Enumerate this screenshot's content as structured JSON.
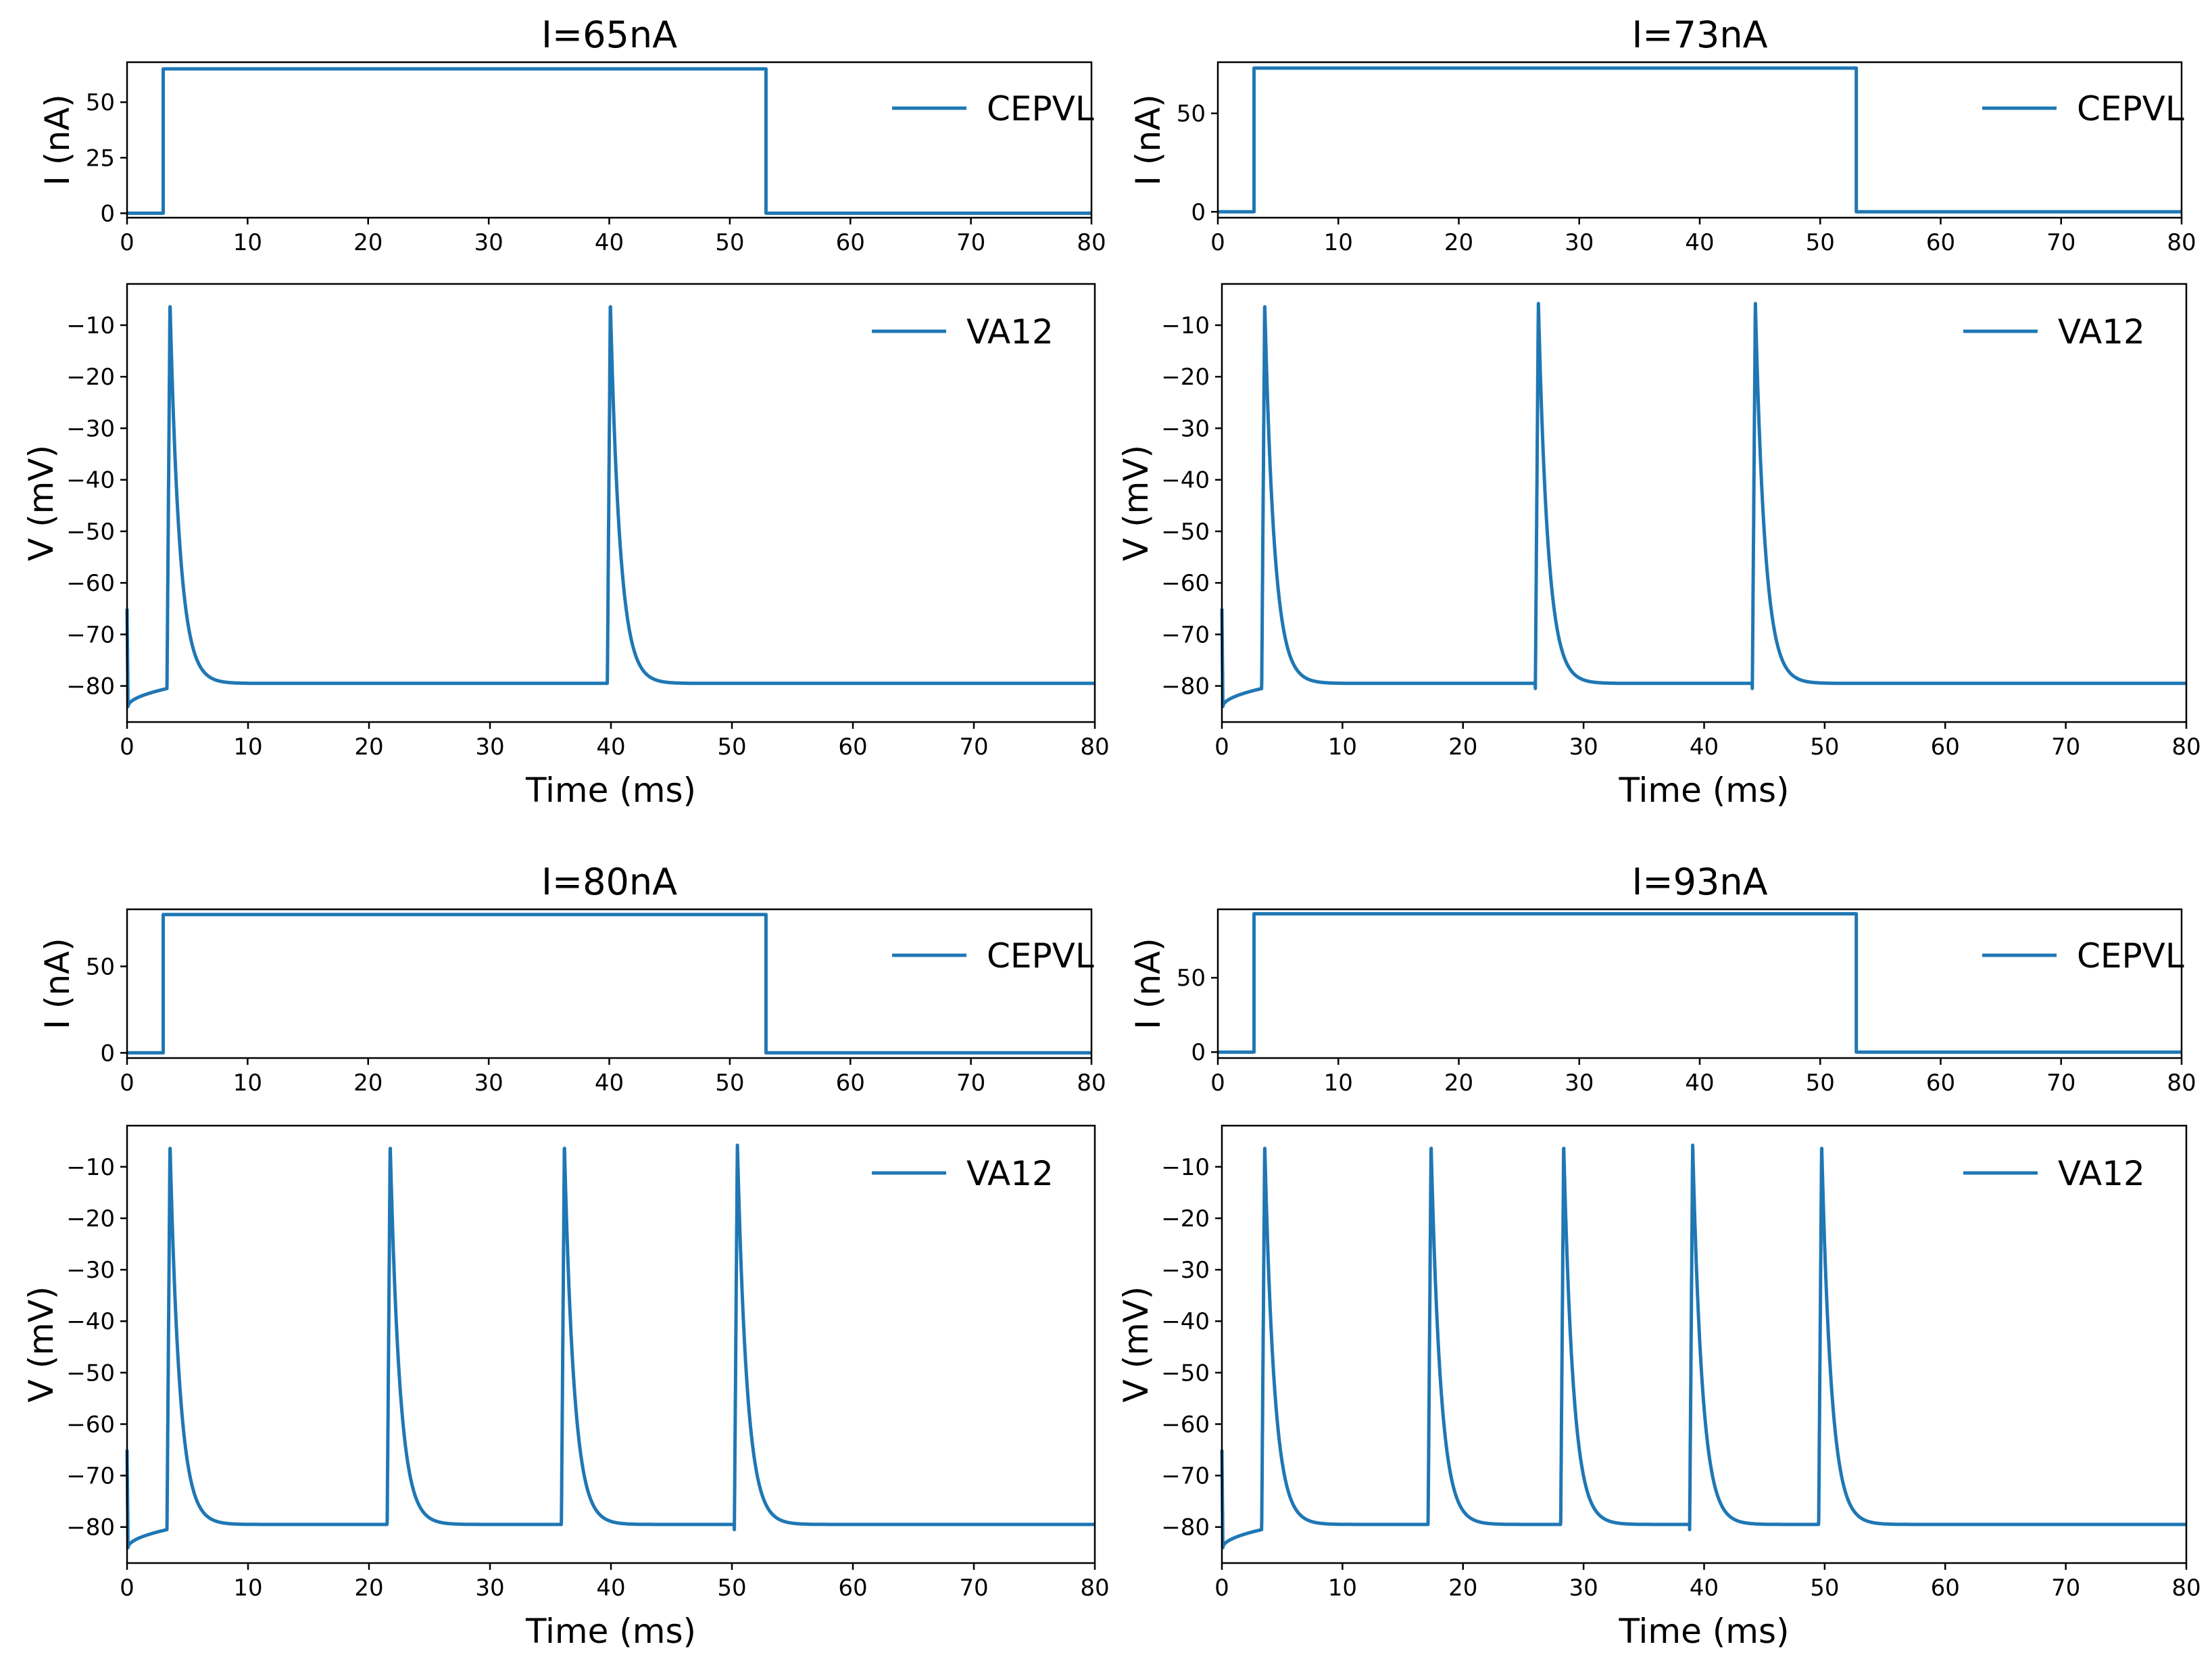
{
  "figure": {
    "color": "#1f77b4",
    "stim_window_ms": [
      3,
      53
    ],
    "panels": [
      {
        "title": "I=65nA",
        "current_nA": 65,
        "spike_times_ms": [
          3.3,
          39.7
        ]
      },
      {
        "title": "I=73nA",
        "current_nA": 73,
        "spike_times_ms": [
          3.3,
          26.0,
          44.0
        ]
      },
      {
        "title": "I=80nA",
        "current_nA": 80,
        "spike_times_ms": [
          3.3,
          21.5,
          35.9,
          50.2
        ]
      },
      {
        "title": "I=93nA",
        "current_nA": 93,
        "spike_times_ms": [
          3.3,
          17.1,
          28.1,
          38.8,
          49.5
        ]
      }
    ]
  },
  "chart_data": [
    {
      "type": "line",
      "title": "I=65nA",
      "xlabel": "",
      "ylabel": "I (nA)",
      "xlim": [
        0,
        80
      ],
      "ylim": [
        -2,
        68
      ],
      "xticks": [
        "0",
        "10",
        "20",
        "30",
        "40",
        "50",
        "60",
        "70",
        "80"
      ],
      "yticks": [
        {
          "v": 0,
          "label": "0"
        },
        {
          "v": 25,
          "label": "25"
        },
        {
          "v": 50,
          "label": "50"
        }
      ],
      "legend": "CEPVL",
      "legend_position": "upper-right",
      "series": [
        {
          "name": "CEPVL",
          "x": [
            0,
            3,
            3,
            53,
            53,
            80
          ],
          "y": [
            0,
            0,
            65,
            65,
            0,
            0
          ]
        }
      ]
    },
    {
      "type": "line",
      "title": "",
      "xlabel": "Time (ms)",
      "ylabel": "V (mV)",
      "xlim": [
        0,
        80
      ],
      "ylim": [
        -87,
        -2
      ],
      "xticks": [
        "0",
        "10",
        "20",
        "30",
        "40",
        "50",
        "60",
        "70",
        "80"
      ],
      "yticks": [
        {
          "v": -10,
          "label": "−10"
        },
        {
          "v": -20,
          "label": "−20"
        },
        {
          "v": -30,
          "label": "−30"
        },
        {
          "v": -40,
          "label": "−40"
        },
        {
          "v": -50,
          "label": "−50"
        },
        {
          "v": -60,
          "label": "−60"
        },
        {
          "v": -70,
          "label": "−70"
        },
        {
          "v": -80,
          "label": "−80"
        }
      ],
      "legend": "VA12",
      "legend_position": "upper-right",
      "series": [
        {
          "name": "VA12",
          "spike_times": [
            3.3,
            39.7
          ],
          "peak": -5.5,
          "rest": -79.5
        }
      ]
    },
    {
      "type": "line",
      "title": "I=73nA",
      "xlabel": "",
      "ylabel": "I (nA)",
      "xlim": [
        0,
        80
      ],
      "ylim": [
        -3,
        76
      ],
      "xticks": [
        "0",
        "10",
        "20",
        "30",
        "40",
        "50",
        "60",
        "70",
        "80"
      ],
      "yticks": [
        {
          "v": 0,
          "label": "0"
        },
        {
          "v": 50,
          "label": "50"
        }
      ],
      "legend": "CEPVL",
      "legend_position": "upper-right",
      "series": [
        {
          "name": "CEPVL",
          "x": [
            0,
            3,
            3,
            53,
            53,
            80
          ],
          "y": [
            0,
            0,
            73,
            73,
            0,
            0
          ]
        }
      ]
    },
    {
      "type": "line",
      "title": "",
      "xlabel": "Time (ms)",
      "ylabel": "V (mV)",
      "xlim": [
        0,
        80
      ],
      "ylim": [
        -87,
        -2
      ],
      "xticks": [
        "0",
        "10",
        "20",
        "30",
        "40",
        "50",
        "60",
        "70",
        "80"
      ],
      "yticks": [
        {
          "v": -10,
          "label": "−10"
        },
        {
          "v": -20,
          "label": "−20"
        },
        {
          "v": -30,
          "label": "−30"
        },
        {
          "v": -40,
          "label": "−40"
        },
        {
          "v": -50,
          "label": "−50"
        },
        {
          "v": -60,
          "label": "−60"
        },
        {
          "v": -70,
          "label": "−70"
        },
        {
          "v": -80,
          "label": "−80"
        }
      ],
      "legend": "VA12",
      "legend_position": "upper-right",
      "series": [
        {
          "name": "VA12",
          "spike_times": [
            3.3,
            26.0,
            44.0
          ],
          "peak": -5.5,
          "rest": -79.5
        }
      ]
    },
    {
      "type": "line",
      "title": "I=80nA",
      "xlabel": "",
      "ylabel": "I (nA)",
      "xlim": [
        0,
        80
      ],
      "ylim": [
        -3,
        83
      ],
      "xticks": [
        "0",
        "10",
        "20",
        "30",
        "40",
        "50",
        "60",
        "70",
        "80"
      ],
      "yticks": [
        {
          "v": 0,
          "label": "0"
        },
        {
          "v": 50,
          "label": "50"
        }
      ],
      "legend": "CEPVL",
      "legend_position": "upper-right",
      "series": [
        {
          "name": "CEPVL",
          "x": [
            0,
            3,
            3,
            53,
            53,
            80
          ],
          "y": [
            0,
            0,
            80,
            80,
            0,
            0
          ]
        }
      ]
    },
    {
      "type": "line",
      "title": "",
      "xlabel": "Time (ms)",
      "ylabel": "V (mV)",
      "xlim": [
        0,
        80
      ],
      "ylim": [
        -87,
        -2
      ],
      "xticks": [
        "0",
        "10",
        "20",
        "30",
        "40",
        "50",
        "60",
        "70",
        "80"
      ],
      "yticks": [
        {
          "v": -10,
          "label": "−10"
        },
        {
          "v": -20,
          "label": "−20"
        },
        {
          "v": -30,
          "label": "−30"
        },
        {
          "v": -40,
          "label": "−40"
        },
        {
          "v": -50,
          "label": "−50"
        },
        {
          "v": -60,
          "label": "−60"
        },
        {
          "v": -70,
          "label": "−70"
        },
        {
          "v": -80,
          "label": "−80"
        }
      ],
      "legend": "VA12",
      "legend_position": "upper-right",
      "series": [
        {
          "name": "VA12",
          "spike_times": [
            3.3,
            21.5,
            35.9,
            50.2
          ],
          "peak": -5.5,
          "rest": -79.5
        }
      ]
    },
    {
      "type": "line",
      "title": "I=93nA",
      "xlabel": "",
      "ylabel": "I (nA)",
      "xlim": [
        0,
        80
      ],
      "ylim": [
        -4,
        96
      ],
      "xticks": [
        "0",
        "10",
        "20",
        "30",
        "40",
        "50",
        "60",
        "70",
        "80"
      ],
      "yticks": [
        {
          "v": 0,
          "label": "0"
        },
        {
          "v": 50,
          "label": "50"
        }
      ],
      "legend": "CEPVL",
      "legend_position": "upper-right",
      "series": [
        {
          "name": "CEPVL",
          "x": [
            0,
            3,
            3,
            53,
            53,
            80
          ],
          "y": [
            0,
            0,
            93,
            93,
            0,
            0
          ]
        }
      ]
    },
    {
      "type": "line",
      "title": "",
      "xlabel": "Time (ms)",
      "ylabel": "V (mV)",
      "xlim": [
        0,
        80
      ],
      "ylim": [
        -87,
        -2
      ],
      "xticks": [
        "0",
        "10",
        "20",
        "30",
        "40",
        "50",
        "60",
        "70",
        "80"
      ],
      "yticks": [
        {
          "v": -10,
          "label": "−10"
        },
        {
          "v": -20,
          "label": "−20"
        },
        {
          "v": -30,
          "label": "−30"
        },
        {
          "v": -40,
          "label": "−40"
        },
        {
          "v": -50,
          "label": "−50"
        },
        {
          "v": -60,
          "label": "−60"
        },
        {
          "v": -70,
          "label": "−70"
        },
        {
          "v": -80,
          "label": "−80"
        }
      ],
      "legend": "VA12",
      "legend_position": "upper-right",
      "series": [
        {
          "name": "VA12",
          "spike_times": [
            3.3,
            17.1,
            28.1,
            38.8,
            49.5
          ],
          "peak": -5.5,
          "rest": -79.5
        }
      ]
    }
  ]
}
